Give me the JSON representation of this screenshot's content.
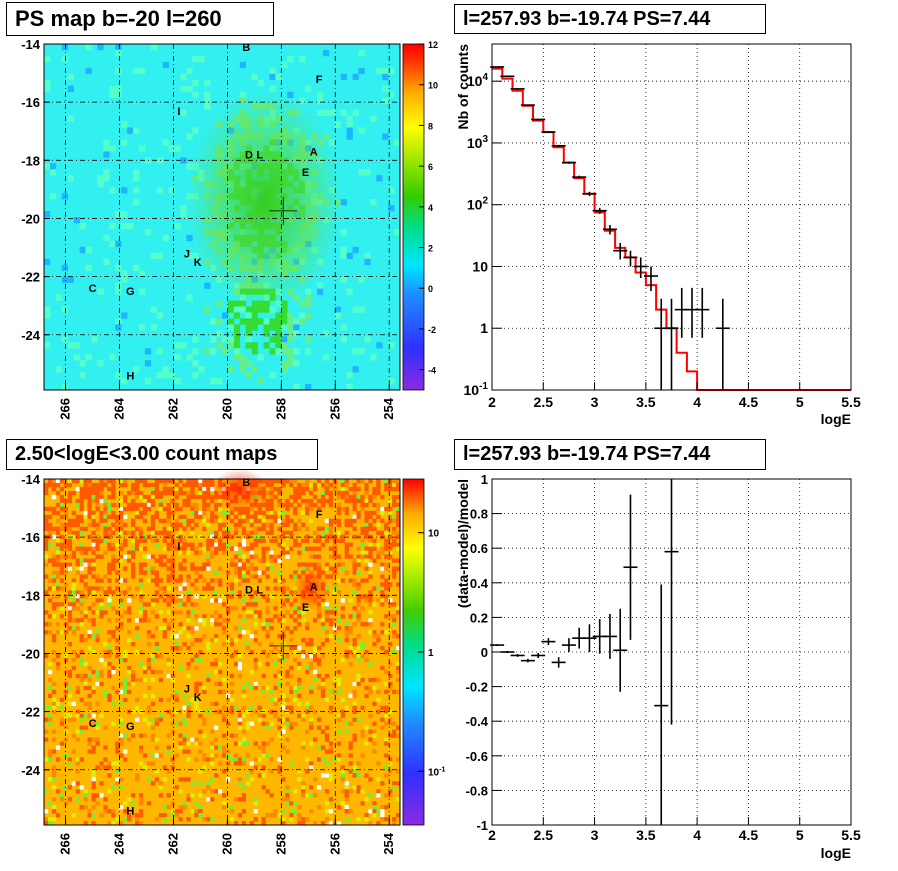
{
  "panels": {
    "tl_title": "PS map b=-20 l=260",
    "tr_title": "l=257.93 b=-19.74 PS=7.44",
    "bl_title": "2.50<logE<3.00 count maps",
    "br_title": "l=257.93 b=-19.74 PS=7.44"
  },
  "chart_data": [
    {
      "type": "heatmap",
      "title": "PS map b=-20 l=260",
      "x_ticks": [
        "266",
        "264",
        "262",
        "260",
        "258",
        "256",
        "254"
      ],
      "y_ticks": [
        "-14",
        "-16",
        "-18",
        "-20",
        "-22",
        "-24"
      ],
      "colorbar_ticks": [
        "12",
        "10",
        "8",
        "6",
        "4",
        "2",
        "0",
        "-2",
        "-4"
      ],
      "colorbar_range": [
        -5,
        12
      ],
      "markers": [
        {
          "label": "B",
          "l": 259.3,
          "b": -14.1
        },
        {
          "label": "F",
          "l": 256.6,
          "b": -15.2
        },
        {
          "label": "I",
          "l": 261.8,
          "b": -16.3
        },
        {
          "label": "D",
          "l": 259.2,
          "b": -17.8
        },
        {
          "label": "L",
          "l": 258.8,
          "b": -17.8
        },
        {
          "label": "A",
          "l": 256.8,
          "b": -17.7
        },
        {
          "label": "E",
          "l": 257.1,
          "b": -18.4
        },
        {
          "label": "J",
          "l": 261.5,
          "b": -21.2
        },
        {
          "label": "K",
          "l": 261.1,
          "b": -21.5
        },
        {
          "label": "C",
          "l": 265.0,
          "b": -22.4
        },
        {
          "label": "G",
          "l": 263.6,
          "b": -22.5
        },
        {
          "label": "H",
          "l": 263.6,
          "b": -25.4
        }
      ],
      "source_position": {
        "l": 257.93,
        "b": -19.74
      }
    },
    {
      "type": "line",
      "title": "l=257.93 b=-19.74 PS=7.44",
      "xlabel": "logE",
      "ylabel": "Nb of counts",
      "xlim": [
        2,
        5.5
      ],
      "ylim": [
        0.1,
        40000
      ],
      "yscale": "log",
      "x_ticks": [
        "2",
        "2.5",
        "3",
        "3.5",
        "4",
        "4.5",
        "5",
        "5.5"
      ],
      "y_ticks": [
        "10^-1",
        "1",
        "10",
        "10^2",
        "10^3",
        "10^4"
      ],
      "grid": true,
      "model": {
        "color": "#ff0000",
        "edges": [
          2.0,
          2.1,
          2.2,
          2.3,
          2.4,
          2.5,
          2.6,
          2.7,
          2.8,
          2.9,
          3.0,
          3.1,
          3.2,
          3.3,
          3.4,
          3.5,
          3.6,
          3.7,
          3.8,
          3.9,
          4.0,
          5.5
        ],
        "values": [
          16000,
          11000,
          7000,
          4000,
          2300,
          1500,
          850,
          480,
          270,
          150,
          75,
          38,
          20,
          14,
          8,
          5,
          2,
          1,
          0.4,
          0.2,
          0.1
        ]
      },
      "data": {
        "x": [
          2.05,
          2.15,
          2.25,
          2.35,
          2.45,
          2.55,
          2.65,
          2.75,
          2.85,
          2.95,
          3.05,
          3.15,
          3.25,
          3.35,
          3.45,
          3.55,
          3.65,
          3.75,
          3.85,
          3.95,
          4.05,
          4.25
        ],
        "y": [
          17000,
          12000,
          7500,
          4100,
          2400,
          1500,
          900,
          480,
          280,
          150,
          80,
          40,
          18,
          14,
          10,
          7,
          1,
          1,
          2,
          2,
          2,
          1
        ],
        "ylo": [
          16700,
          11700,
          7300,
          4000,
          2350,
          1460,
          870,
          460,
          265,
          138,
          71,
          33,
          13,
          10,
          6.5,
          4,
          0.1,
          0.1,
          0.7,
          0.7,
          0.7,
          0.1
        ],
        "yhi": [
          17300,
          12300,
          7700,
          4200,
          2450,
          1540,
          930,
          500,
          295,
          162,
          89,
          47,
          24,
          18,
          14,
          10,
          3,
          3,
          4.5,
          4.5,
          4.5,
          3
        ]
      }
    },
    {
      "type": "heatmap",
      "title": "2.50<logE<3.00 count maps",
      "x_ticks": [
        "266",
        "264",
        "262",
        "260",
        "258",
        "256",
        "254"
      ],
      "y_ticks": [
        "-14",
        "-16",
        "-18",
        "-20",
        "-22",
        "-24"
      ],
      "colorbar_ticks": [
        "10",
        "1",
        "10^-1"
      ],
      "colorbar_scale": "log"
    },
    {
      "type": "scatter",
      "title": "l=257.93 b=-19.74 PS=7.44",
      "xlabel": "logE",
      "ylabel": "(data-model)/model",
      "xlim": [
        2,
        5.5
      ],
      "ylim": [
        -1,
        1
      ],
      "x_ticks": [
        "2",
        "2.5",
        "3",
        "3.5",
        "4",
        "4.5",
        "5",
        "5.5"
      ],
      "y_ticks": [
        "1",
        "0.8",
        "0.6",
        "0.4",
        "0.2",
        "0",
        "-0.2",
        "-0.4",
        "-0.6",
        "-0.8",
        "-1"
      ],
      "grid": true,
      "data": {
        "x": [
          2.05,
          2.15,
          2.25,
          2.35,
          2.45,
          2.55,
          2.65,
          2.75,
          2.85,
          2.95,
          3.05,
          3.15,
          3.25,
          3.35,
          3.65,
          3.75
        ],
        "y": [
          0.04,
          0.0,
          -0.02,
          -0.05,
          -0.02,
          0.06,
          -0.06,
          0.04,
          0.08,
          0.08,
          0.09,
          0.09,
          0.01,
          0.49,
          -0.31,
          0.58
        ],
        "err": [
          0.005,
          0.006,
          0.008,
          0.01,
          0.015,
          0.02,
          0.03,
          0.04,
          0.06,
          0.08,
          0.1,
          0.13,
          0.24,
          0.42,
          0.7,
          1.0
        ]
      }
    }
  ]
}
